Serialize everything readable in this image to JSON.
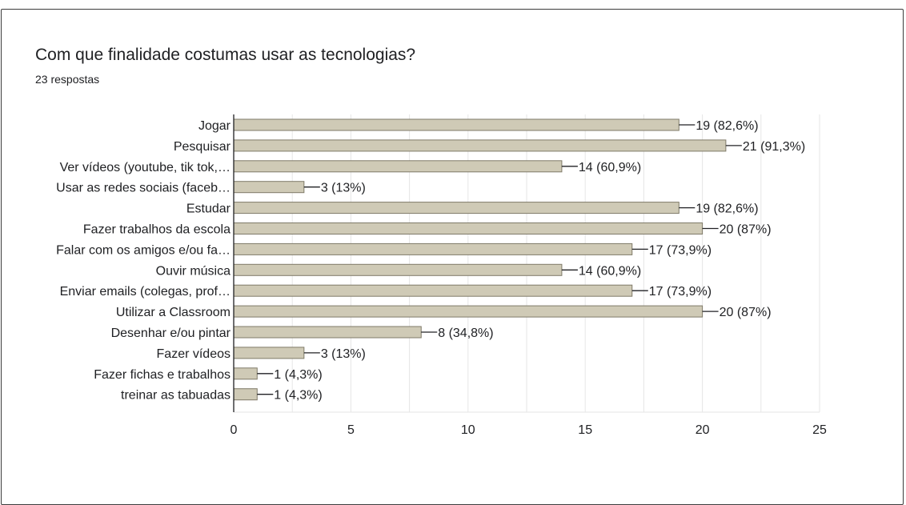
{
  "form": {
    "question": "Com que finalidade costumas usar as tecnologias?",
    "responses": "23 respostas"
  },
  "colors": {
    "bar_fill": "#cfcab6",
    "bar_stroke": "#7f7a68",
    "gridline": "#e6e6e6",
    "axis": "#202124"
  },
  "chart_data": {
    "type": "bar",
    "orientation": "horizontal",
    "title": "Com que finalidade costumas usar as tecnologias?",
    "subtitle": "23 respostas",
    "categories": [
      "Jogar",
      "Pesquisar",
      "Ver vídeos (youtube, tik tok,…",
      "Usar as redes sociais (faceb…",
      "Estudar",
      "Fazer trabalhos da escola",
      "Falar com os amigos e/ou fa…",
      "Ouvir música",
      "Enviar emails (colegas, prof…",
      "Utilizar a Classroom",
      "Desenhar e/ou pintar",
      "Fazer vídeos",
      "Fazer fichas e trabalhos",
      "treinar as tabuadas"
    ],
    "values": [
      19,
      21,
      14,
      3,
      19,
      20,
      17,
      14,
      17,
      20,
      8,
      3,
      1,
      1
    ],
    "data_labels": [
      "19 (82,6%)",
      "21 (91,3%)",
      "14 (60,9%)",
      "3 (13%)",
      "19 (82,6%)",
      "20 (87%)",
      "17 (73,9%)",
      "14 (60,9%)",
      "17 (73,9%)",
      "20 (87%)",
      "8 (34,8%)",
      "3 (13%)",
      "1 (4,3%)",
      "1 (4,3%)"
    ],
    "x_ticks": [
      "0",
      "5",
      "10",
      "15",
      "20",
      "25"
    ],
    "xlim": [
      0,
      25
    ],
    "xlabel": "",
    "ylabel": "",
    "grid": true,
    "legend": "none"
  }
}
